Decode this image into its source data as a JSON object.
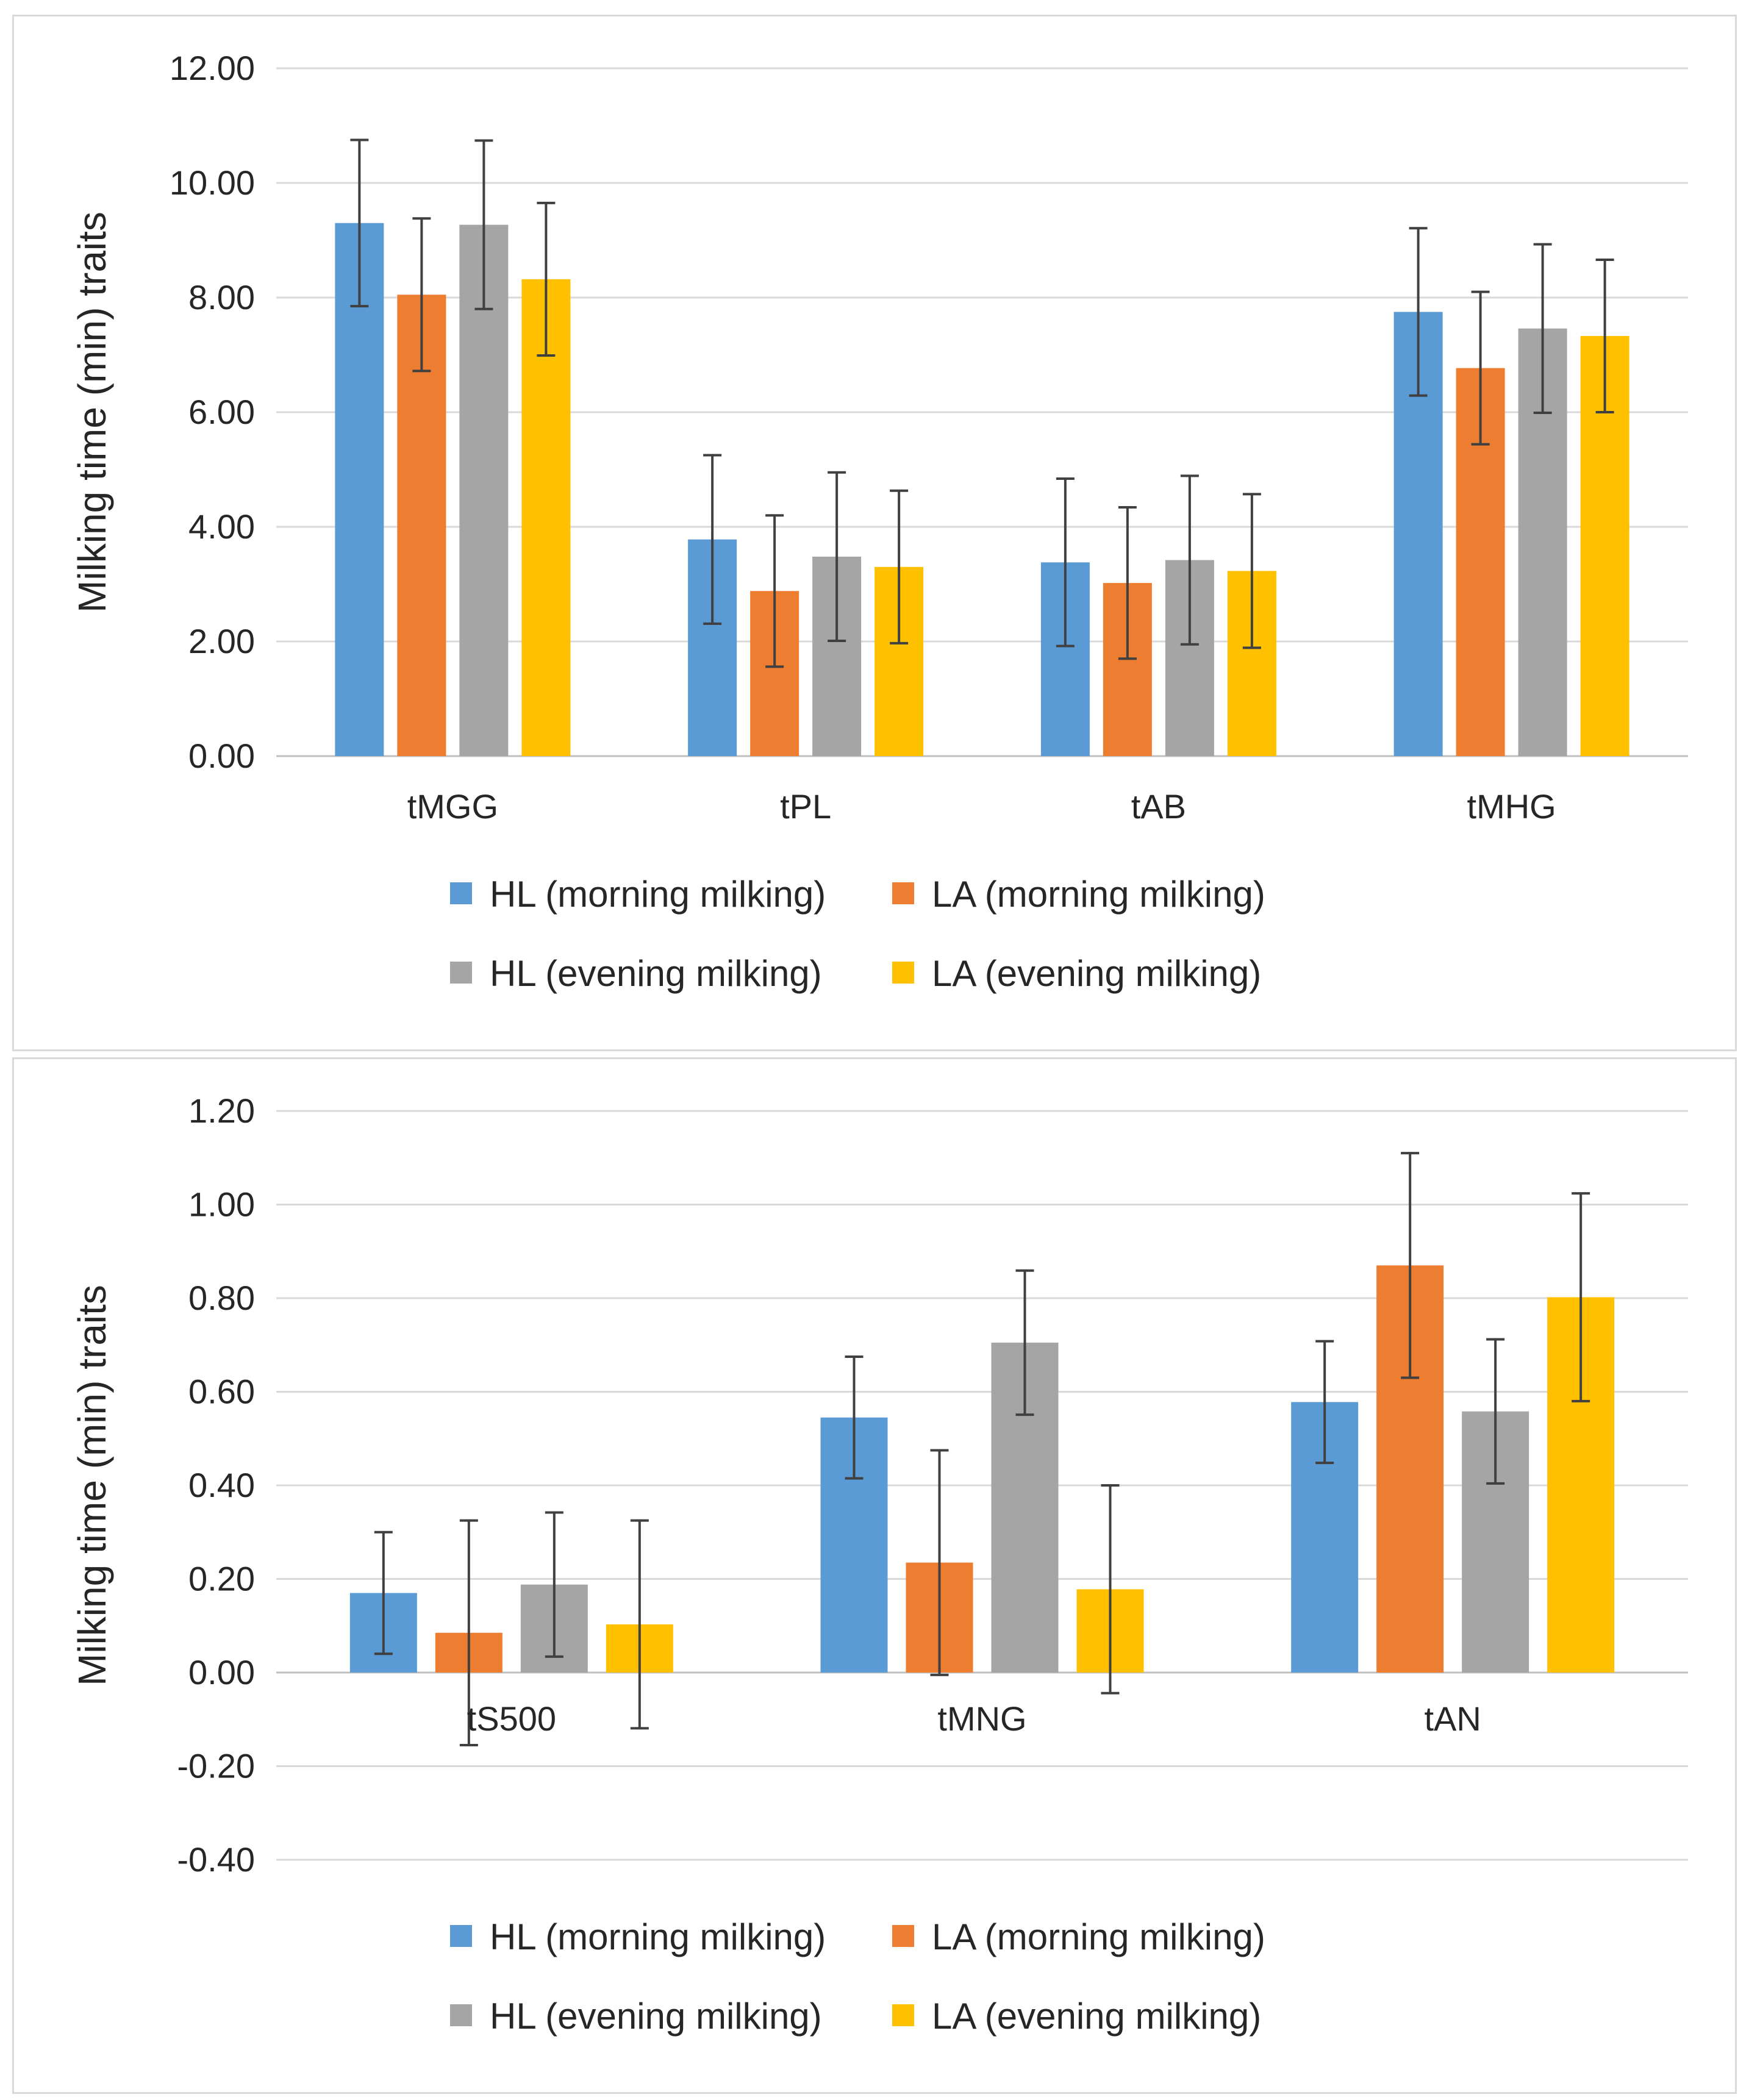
{
  "chart_data": [
    {
      "type": "bar",
      "title": "",
      "xlabel": "",
      "ylabel": "Milking time (min) traits",
      "ylim": [
        0,
        12
      ],
      "ytick_step": 2,
      "ytick_labels": [
        "0.00",
        "2.00",
        "4.00",
        "6.00",
        "8.00",
        "10.00",
        "12.00"
      ],
      "error_bars": true,
      "grid": true,
      "legend_position": "bottom",
      "categories": [
        "tMGG",
        "tPL",
        "tAB",
        "tMHG"
      ],
      "series": [
        {
          "name": "HL  (morning milking)",
          "color": "#5b9bd5",
          "values": [
            9.3,
            3.78,
            3.38,
            7.75
          ],
          "errors": [
            1.45,
            1.47,
            1.46,
            1.46
          ]
        },
        {
          "name": "LA  (morning milking)",
          "color": "#ed7d31",
          "values": [
            8.05,
            2.88,
            3.02,
            6.77
          ],
          "errors": [
            1.33,
            1.32,
            1.32,
            1.33
          ]
        },
        {
          "name": "HL (evening milking)",
          "color": "#a5a5a5",
          "values": [
            9.27,
            3.48,
            3.42,
            7.46
          ],
          "errors": [
            1.47,
            1.47,
            1.47,
            1.47
          ]
        },
        {
          "name": "LA (evening milking)",
          "color": "#ffc000",
          "values": [
            8.32,
            3.3,
            3.23,
            7.33
          ],
          "errors": [
            1.33,
            1.33,
            1.34,
            1.33
          ]
        }
      ]
    },
    {
      "type": "bar",
      "title": "",
      "xlabel": "",
      "ylabel": "Milking time (min) traits",
      "ylim": [
        -0.4,
        1.2
      ],
      "ytick_step": 0.2,
      "ytick_labels": [
        "-0.40",
        "-0.20",
        "0.00",
        "0.20",
        "0.40",
        "0.60",
        "0.80",
        "1.00",
        "1.20"
      ],
      "error_bars": true,
      "grid": true,
      "legend_position": "bottom",
      "categories": [
        "tS500",
        "tMNG",
        "tAN"
      ],
      "series": [
        {
          "name": "HL  (morning milking)",
          "color": "#5b9bd5",
          "values": [
            0.17,
            0.545,
            0.578
          ],
          "errors": [
            0.13,
            0.13,
            0.13
          ]
        },
        {
          "name": "LA  (morning milking)",
          "color": "#ed7d31",
          "values": [
            0.085,
            0.235,
            0.87
          ],
          "errors": [
            0.24,
            0.24,
            0.24
          ]
        },
        {
          "name": "HL (evening milking)",
          "color": "#a5a5a5",
          "values": [
            0.188,
            0.705,
            0.558
          ],
          "errors": [
            0.154,
            0.154,
            0.154
          ]
        },
        {
          "name": "LA (evening milking)",
          "color": "#ffc000",
          "values": [
            0.103,
            0.178,
            0.802
          ],
          "errors": [
            0.222,
            0.222,
            0.222
          ]
        }
      ]
    }
  ]
}
